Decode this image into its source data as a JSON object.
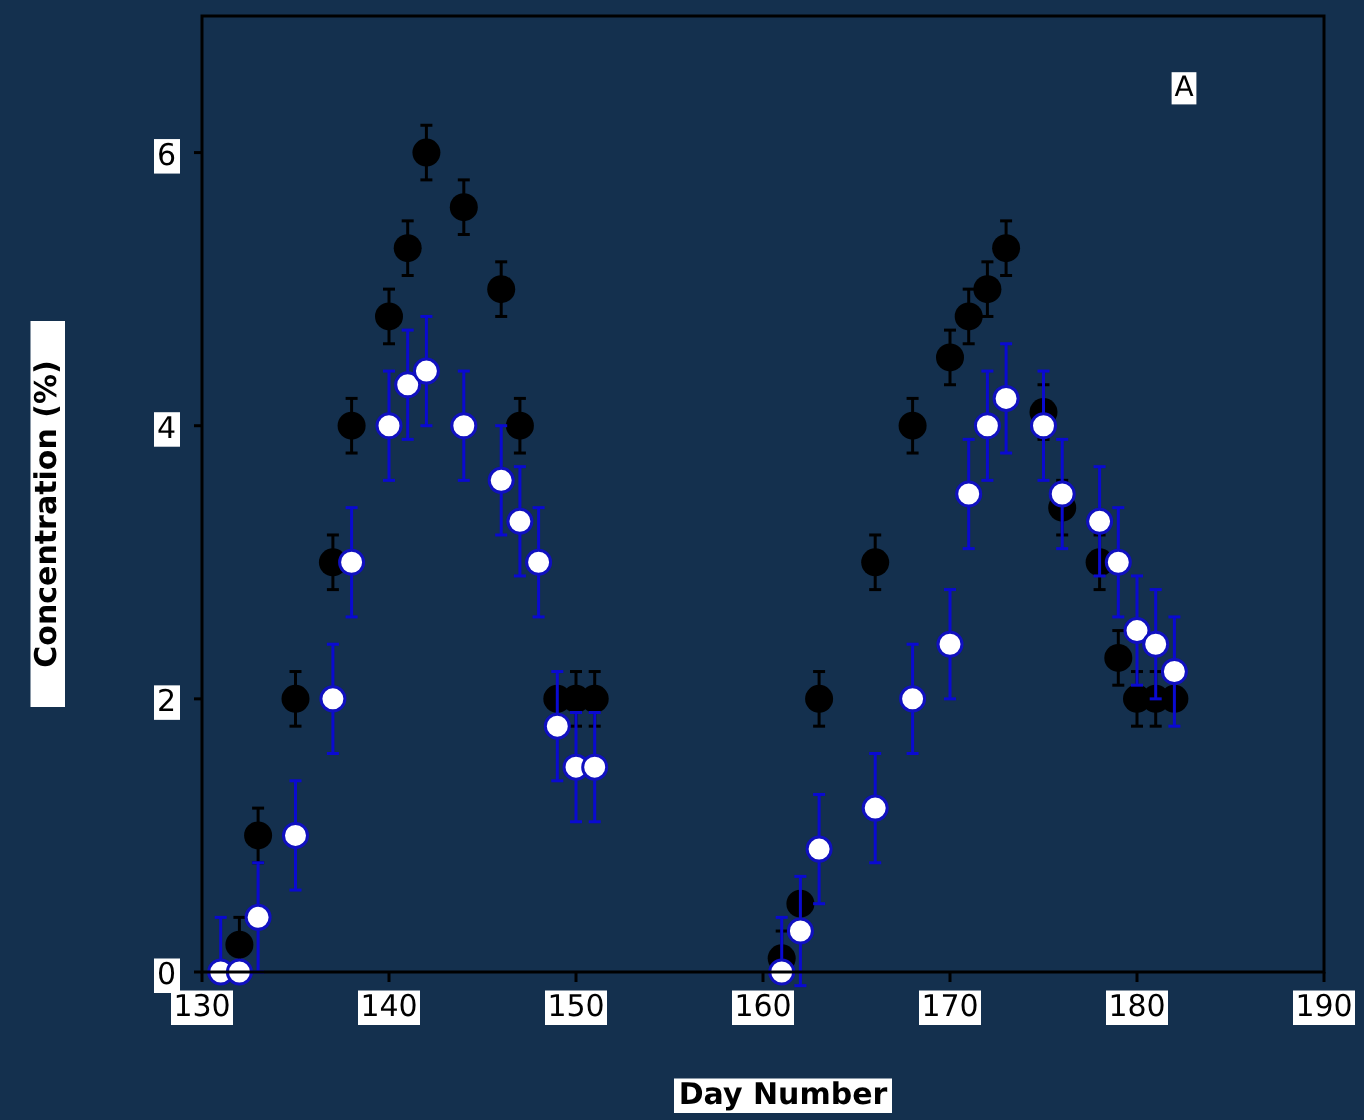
{
  "chart_data": {
    "type": "scatter",
    "xlabel": "Day Number",
    "ylabel": "Concentration  (%)",
    "xlim": [
      130,
      190
    ],
    "ylim": [
      0,
      7
    ],
    "xticks": [
      130,
      140,
      150,
      160,
      170,
      180,
      190
    ],
    "yticks": [
      0,
      2,
      4,
      6
    ],
    "grid": false,
    "marker": "circle",
    "annotations": [
      "A"
    ],
    "series": [
      {
        "color": "#000000",
        "x": [
          132,
          133,
          135,
          137,
          138,
          140,
          141,
          142,
          144,
          146,
          147,
          149,
          150,
          151,
          161,
          162,
          163,
          166,
          168,
          170,
          171,
          172,
          173,
          175,
          176,
          178,
          179,
          180,
          181,
          182
        ],
        "values": [
          0.2,
          1.0,
          2.0,
          3.0,
          4.0,
          4.8,
          5.3,
          6.0,
          5.6,
          5.0,
          4.0,
          2.0,
          2.0,
          2.0,
          0.1,
          0.5,
          2.0,
          3.0,
          4.0,
          4.5,
          4.8,
          5.0,
          5.3,
          4.1,
          3.4,
          3.0,
          2.3,
          2.0,
          2.0,
          2.0
        ],
        "errors": [
          0.2,
          0.2,
          0.2,
          0.2,
          0.2,
          0.2,
          0.2,
          0.2,
          0.2,
          0.2,
          0.2,
          null,
          0.2,
          0.2,
          [
            0,
            0.3
          ],
          null,
          0.2,
          0.2,
          0.2,
          0.2,
          0.2,
          0.2,
          0.2,
          0.2,
          0.2,
          0.2,
          0.2,
          0.2,
          0.2,
          null
        ]
      },
      {
        "color": "#ffffff",
        "x": [
          131,
          132,
          133,
          135,
          137,
          138,
          140,
          141,
          142,
          144,
          146,
          147,
          148,
          149,
          150,
          151,
          161,
          162,
          163,
          166,
          168,
          170,
          171,
          172,
          173,
          175,
          176,
          178,
          179,
          180,
          181,
          182
        ],
        "values": [
          0,
          0,
          0.4,
          1.0,
          2.0,
          3.0,
          4.0,
          4.3,
          4.4,
          4.0,
          3.6,
          3.3,
          3.0,
          1.8,
          1.5,
          1.5,
          0,
          0.3,
          0.9,
          1.2,
          2.0,
          2.4,
          3.5,
          4.0,
          4.2,
          4.0,
          3.5,
          3.3,
          3.0,
          2.5,
          2.4,
          2.2
        ],
        "errors": [
          [
            0,
            0.4
          ],
          null,
          [
            0,
            0.8
          ],
          0.4,
          0.4,
          0.4,
          0.4,
          0.4,
          0.4,
          0.4,
          0.4,
          0.4,
          0.4,
          0.4,
          0.4,
          0.4,
          [
            0,
            0.4
          ],
          0.4,
          0.4,
          0.4,
          0.4,
          0.4,
          0.4,
          0.4,
          0.4,
          0.4,
          0.4,
          0.4,
          0.4,
          0.4,
          0.4,
          0.4
        ]
      }
    ]
  }
}
